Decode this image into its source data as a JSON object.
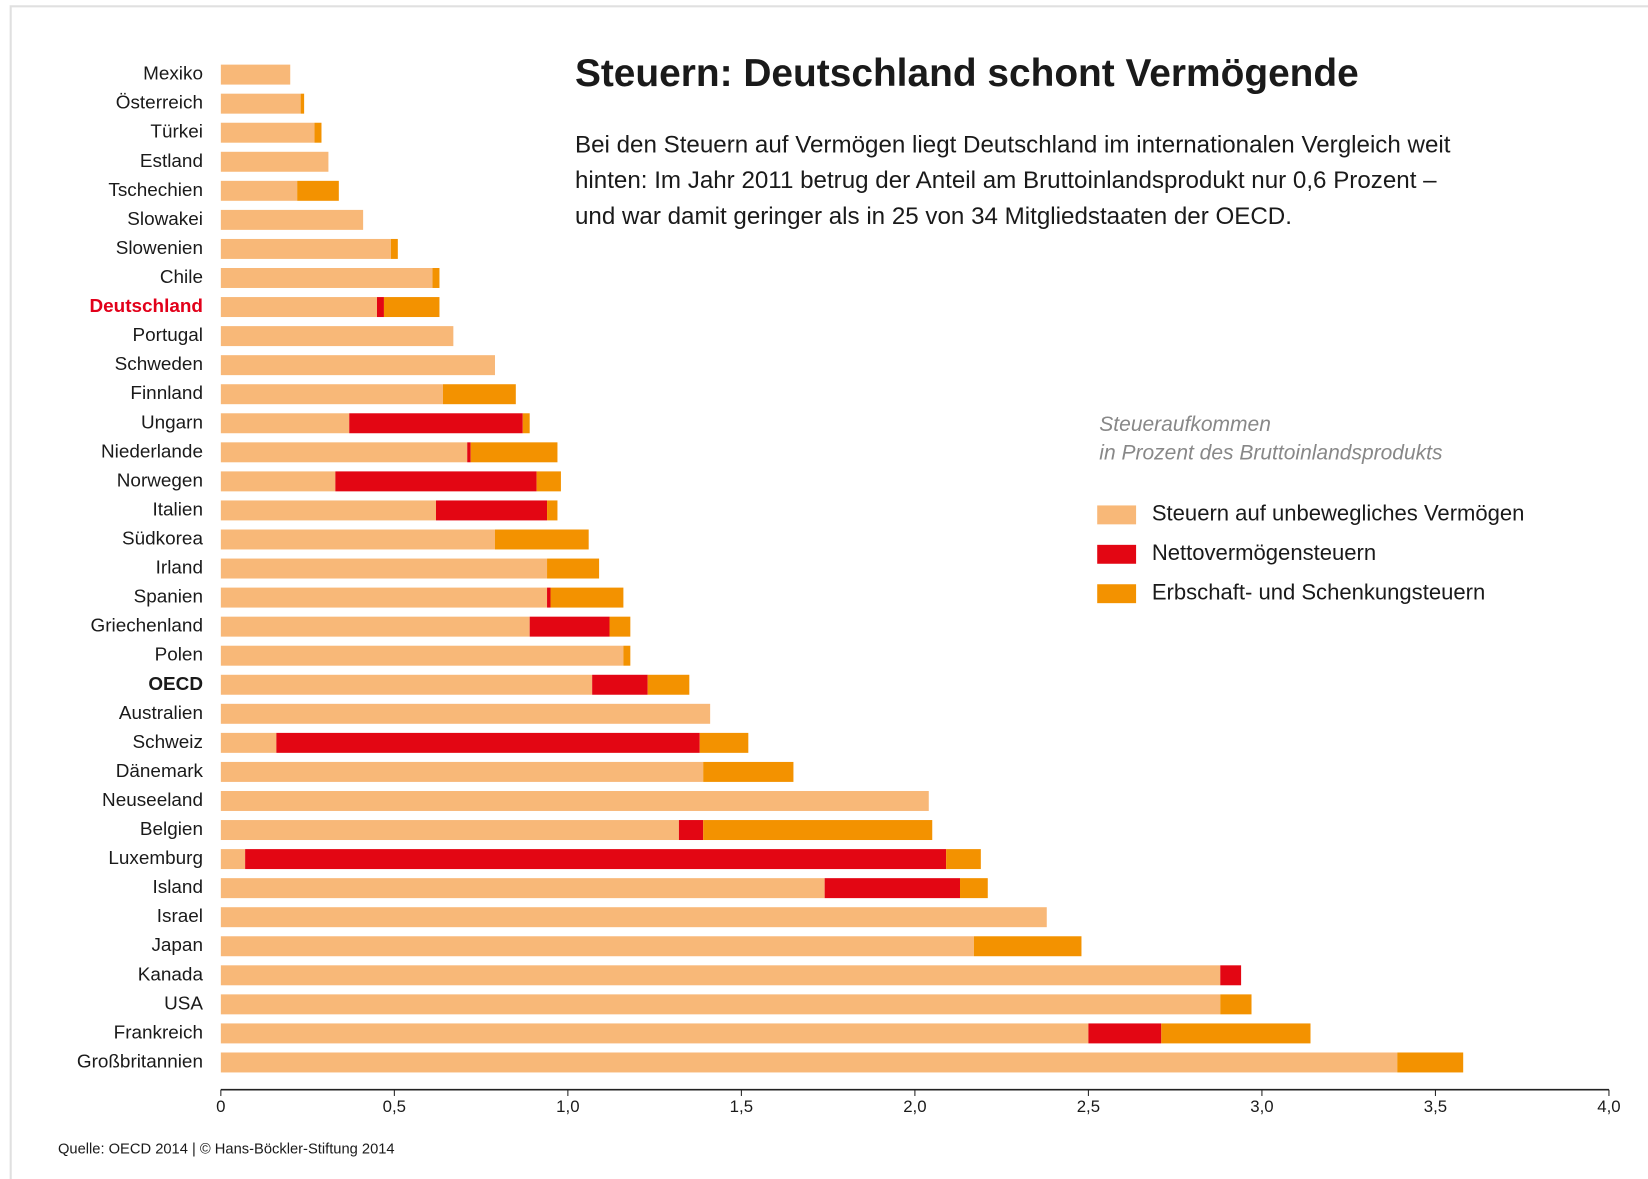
{
  "chart_data": {
    "type": "stacked_bar_horizontal",
    "title": "Steuern: Deutschland schont Vermögende",
    "subtitle": [
      "Bei den Steuern auf Vermögen liegt Deutschland im internationalen Vergleich weit",
      "hinten: Im Jahr 2011 betrug der Anteil am Bruttoinlandsprodukt nur 0,6 Prozent –",
      "und war damit geringer als in 25 von 34 Mitgliedstaaten der OECD."
    ],
    "legend_title": [
      "Steueraufkommen",
      "in Prozent des Bruttoinlandsprodukts"
    ],
    "source": "Quelle: OECD 2014 | © Hans-Böckler-Stiftung 2014",
    "highlight": "Deutschland",
    "bold": "OECD",
    "highlight_color": "#e2001a",
    "categories": [
      "Mexiko",
      "Österreich",
      "Türkei",
      "Estland",
      "Tschechien",
      "Slowakei",
      "Slowenien",
      "Chile",
      "Deutschland",
      "Portugal",
      "Schweden",
      "Finnland",
      "Ungarn",
      "Niederlande",
      "Norwegen",
      "Italien",
      "Südkorea",
      "Irland",
      "Spanien",
      "Griechenland",
      "Polen",
      "OECD",
      "Australien",
      "Schweiz",
      "Dänemark",
      "Neuseeland",
      "Belgien",
      "Luxemburg",
      "Island",
      "Israel",
      "Japan",
      "Kanada",
      "USA",
      "Frankreich",
      "Großbritannien"
    ],
    "series": [
      {
        "name": "Steuern auf unbewegliches Vermögen",
        "color": "#f8b878",
        "values": [
          0.2,
          0.23,
          0.27,
          0.31,
          0.22,
          0.41,
          0.49,
          0.61,
          0.45,
          0.67,
          0.79,
          0.64,
          0.37,
          0.71,
          0.33,
          0.62,
          0.79,
          0.94,
          0.94,
          0.89,
          1.16,
          1.07,
          1.41,
          0.16,
          1.39,
          2.04,
          1.32,
          0.07,
          1.74,
          2.38,
          2.17,
          2.88,
          2.88,
          2.5,
          3.39
        ]
      },
      {
        "name": "Nettovermögensteuern",
        "color": "#e30613",
        "values": [
          0,
          0,
          0,
          0,
          0,
          0,
          0,
          0,
          0.02,
          0,
          0,
          0,
          0.5,
          0.01,
          0.58,
          0.32,
          0,
          0,
          0.01,
          0.23,
          0,
          0.16,
          0,
          1.22,
          0,
          0,
          0.07,
          2.02,
          0.39,
          0,
          0,
          0.06,
          0,
          0.21,
          0
        ]
      },
      {
        "name": "Erbschaft- und Schenkungsteuern",
        "color": "#f39200",
        "values": [
          0,
          0.01,
          0.02,
          0,
          0.12,
          0,
          0.02,
          0.02,
          0.16,
          0,
          0,
          0.21,
          0.02,
          0.25,
          0.07,
          0.03,
          0.27,
          0.15,
          0.21,
          0.06,
          0.02,
          0.12,
          0,
          0.14,
          0.26,
          0,
          0.66,
          0.1,
          0.08,
          0,
          0.31,
          0,
          0.09,
          0.43,
          0.19
        ]
      }
    ],
    "xlim": [
      0,
      4.0
    ],
    "xticks": [
      0,
      {
        "value": 0.5,
        "label": "0,5"
      },
      {
        "value": 1.0,
        "label": "1,0"
      },
      {
        "value": 1.5,
        "label": "1,5"
      },
      {
        "value": 2.0,
        "label": "2,0"
      },
      {
        "value": 2.5,
        "label": "2,5"
      },
      {
        "value": 3.0,
        "label": "3,0"
      },
      {
        "value": 3.5,
        "label": "3,5"
      },
      {
        "value": 4.0,
        "label": "4,0"
      }
    ]
  }
}
